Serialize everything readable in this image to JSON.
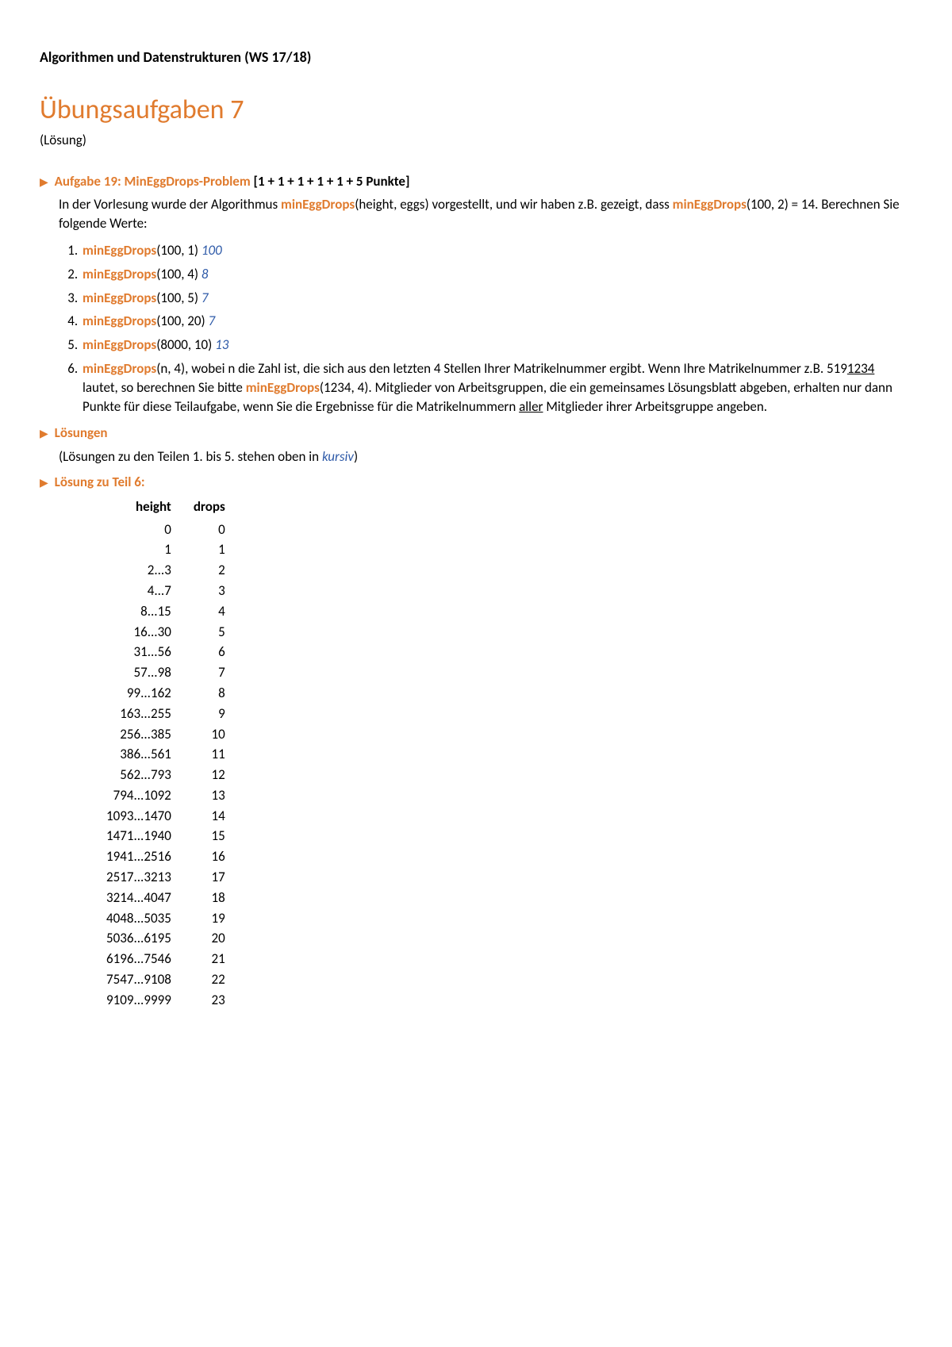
{
  "course": "Algorithmen und Datenstrukturen (WS 17/18)",
  "title": "Übungsaufgaben 7",
  "subtitle": "(Lösung)",
  "task": {
    "label": "Aufgabe 19: MinEggDrops-Problem",
    "points": "[1 + 1 + 1 + 1 + 1 + 5 Punkte]",
    "intro_a": "In der Vorlesung wurde der Algorithmus ",
    "fn1": "minEggDrops",
    "intro_b": "(height, eggs) vorgestellt, und wir haben z.B. gezeigt, dass ",
    "fn2": "minEggDrops",
    "intro_c": "(100, 2) = 14. Berechnen Sie folgende Werte:"
  },
  "items": [
    {
      "fn": "minEggDrops",
      "args": "(100, 1)",
      "ans": "100"
    },
    {
      "fn": "minEggDrops",
      "args": "(100, 4)",
      "ans": "8"
    },
    {
      "fn": "minEggDrops",
      "args": "(100, 5)",
      "ans": "7"
    },
    {
      "fn": "minEggDrops",
      "args": "(100, 20)",
      "ans": "7"
    },
    {
      "fn": "minEggDrops",
      "args": "(8000, 10)",
      "ans": "13"
    }
  ],
  "item6": {
    "fn_a": "minEggDrops",
    "txt_a": "(n, 4), wobei n die Zahl ist, die sich aus den letzten 4 Stellen Ihrer Matrikelnummer ergibt. Wenn Ihre Matrikelnummer z.B. 519",
    "ul_a": "1234",
    "txt_b": " lautet, so berechnen Sie bitte ",
    "fn_b": "minEggDrops",
    "txt_c": "(1234, 4). Mitglieder von Arbeitsgruppen, die ein gemeinsames Lösungsblatt abgeben, erhalten nur dann Punkte für diese Teilaufgabe, wenn Sie die Ergebnisse für die Matrikelnummern ",
    "ul_b": "aller",
    "txt_d": " Mitglieder ihrer Arbeitsgruppe angeben."
  },
  "solutions_label": "Lösungen",
  "solutions_note_a": "(Lösungen zu den Teilen 1. bis 5. stehen oben in ",
  "solutions_note_kursiv": "kursiv",
  "solutions_note_b": ")",
  "sol6_label": "Lösung zu Teil 6:",
  "table": {
    "col_height": "height",
    "col_drops": "drops",
    "rows": [
      {
        "h": "0",
        "d": "0"
      },
      {
        "h": "1",
        "d": "1"
      },
      {
        "h": "2...3",
        "d": "2"
      },
      {
        "h": "4...7",
        "d": "3"
      },
      {
        "h": "8...15",
        "d": "4"
      },
      {
        "h": "16...30",
        "d": "5"
      },
      {
        "h": "31...56",
        "d": "6"
      },
      {
        "h": "57...98",
        "d": "7"
      },
      {
        "h": "99...162",
        "d": "8"
      },
      {
        "h": "163...255",
        "d": "9"
      },
      {
        "h": "256...385",
        "d": "10"
      },
      {
        "h": "386...561",
        "d": "11"
      },
      {
        "h": "562...793",
        "d": "12"
      },
      {
        "h": "794...1092",
        "d": "13"
      },
      {
        "h": "1093...1470",
        "d": "14"
      },
      {
        "h": "1471...1940",
        "d": "15"
      },
      {
        "h": "1941...2516",
        "d": "16"
      },
      {
        "h": "2517...3213",
        "d": "17"
      },
      {
        "h": "3214...4047",
        "d": "18"
      },
      {
        "h": "4048...5035",
        "d": "19"
      },
      {
        "h": "5036...6195",
        "d": "20"
      },
      {
        "h": "6196...7546",
        "d": "21"
      },
      {
        "h": "7547...9108",
        "d": "22"
      },
      {
        "h": "9109...9999",
        "d": "23"
      }
    ]
  },
  "colors": {
    "accent": "#e07b2e",
    "answer": "#2e5aa8",
    "text": "#000000",
    "background": "#ffffff"
  }
}
